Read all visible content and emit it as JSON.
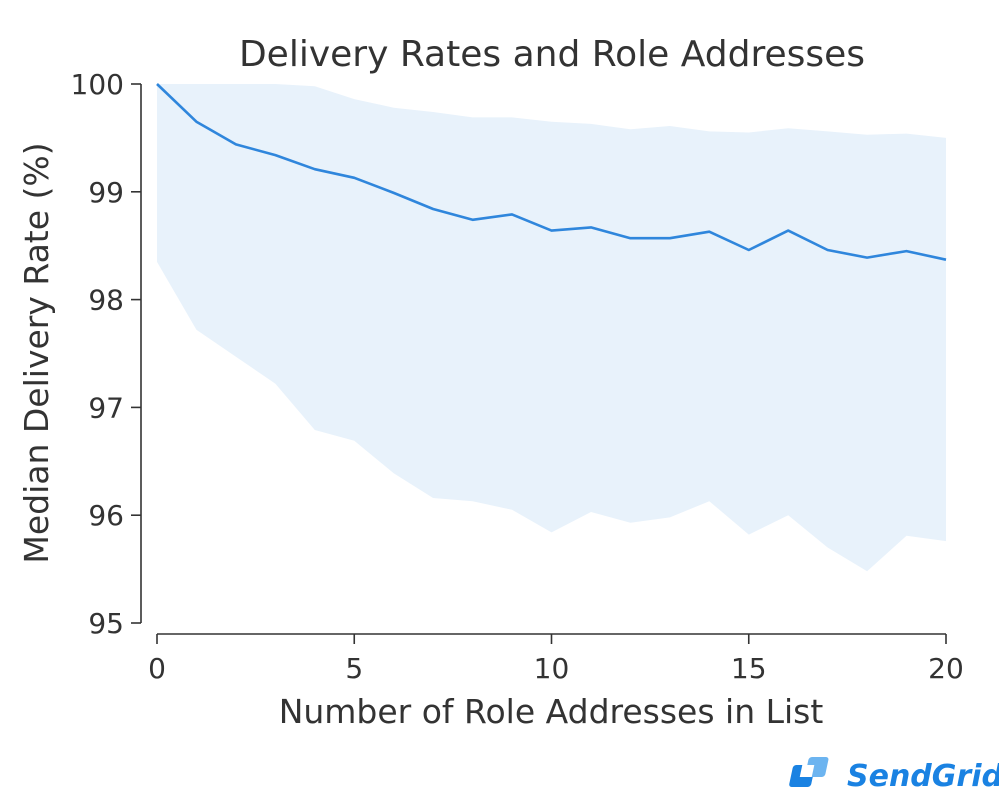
{
  "chart_data": {
    "type": "line",
    "title": "Delivery Rates and Role Addresses",
    "xlabel": "Number of Role Addresses in List",
    "ylabel": "Median Delivery Rate (%)",
    "xlim": [
      0,
      20
    ],
    "ylim": [
      95,
      100
    ],
    "xticks": [
      0,
      5,
      10,
      15,
      20
    ],
    "yticks": [
      95,
      96,
      97,
      98,
      99,
      100
    ],
    "x": [
      0,
      1,
      2,
      3,
      4,
      5,
      6,
      7,
      8,
      9,
      10,
      11,
      12,
      13,
      14,
      15,
      16,
      17,
      18,
      19,
      20
    ],
    "series": [
      {
        "values": [
          100.0,
          99.65,
          99.44,
          99.34,
          99.21,
          99.13,
          98.99,
          98.84,
          98.74,
          98.79,
          98.64,
          98.67,
          98.57,
          98.57,
          98.63,
          98.46,
          98.64,
          98.46,
          98.39,
          98.45,
          98.37
        ],
        "color": "#2f86dc"
      }
    ],
    "band": {
      "upper": [
        100.0,
        100.0,
        100.0,
        100.0,
        99.98,
        99.86,
        99.78,
        99.74,
        99.69,
        99.69,
        99.65,
        99.63,
        99.58,
        99.61,
        99.56,
        99.55,
        99.59,
        99.56,
        99.53,
        99.54,
        99.5
      ],
      "lower": [
        98.35,
        97.72,
        97.47,
        97.22,
        96.79,
        96.69,
        96.39,
        96.16,
        96.13,
        96.05,
        95.84,
        96.03,
        95.93,
        95.98,
        96.13,
        95.82,
        96.0,
        95.7,
        95.48,
        95.81,
        95.76
      ],
      "color": "#e8f2fb"
    },
    "grid": false,
    "legend": "none"
  },
  "logo": {
    "text": "SendGrid",
    "color": "#1a82e2"
  }
}
